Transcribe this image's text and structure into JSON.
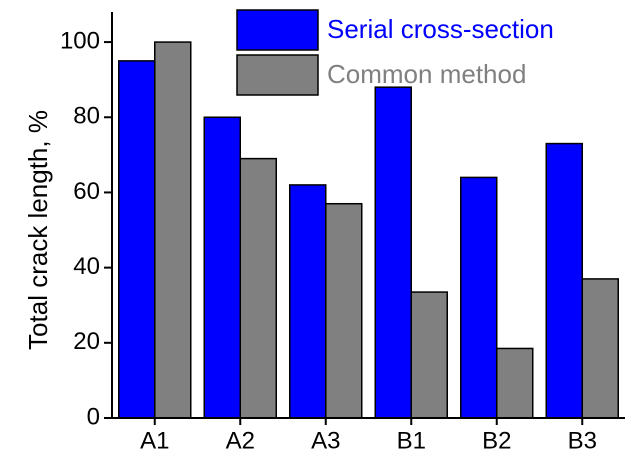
{
  "chart_data": {
    "type": "bar",
    "y_label": "Total crack length, %",
    "categories": [
      "A1",
      "A2",
      "A3",
      "B1",
      "B2",
      "B3"
    ],
    "series": [
      {
        "name": "Serial cross-section",
        "color": "#0000ff",
        "values": [
          95,
          80,
          62,
          88,
          64,
          73
        ]
      },
      {
        "name": "Common method",
        "color": "#808080",
        "values": [
          100,
          69,
          57,
          33.5,
          18.5,
          37
        ]
      }
    ],
    "ylim": [
      0,
      108
    ],
    "yticks": [
      0,
      20,
      40,
      60,
      80,
      100
    ],
    "legend": "upper right"
  }
}
